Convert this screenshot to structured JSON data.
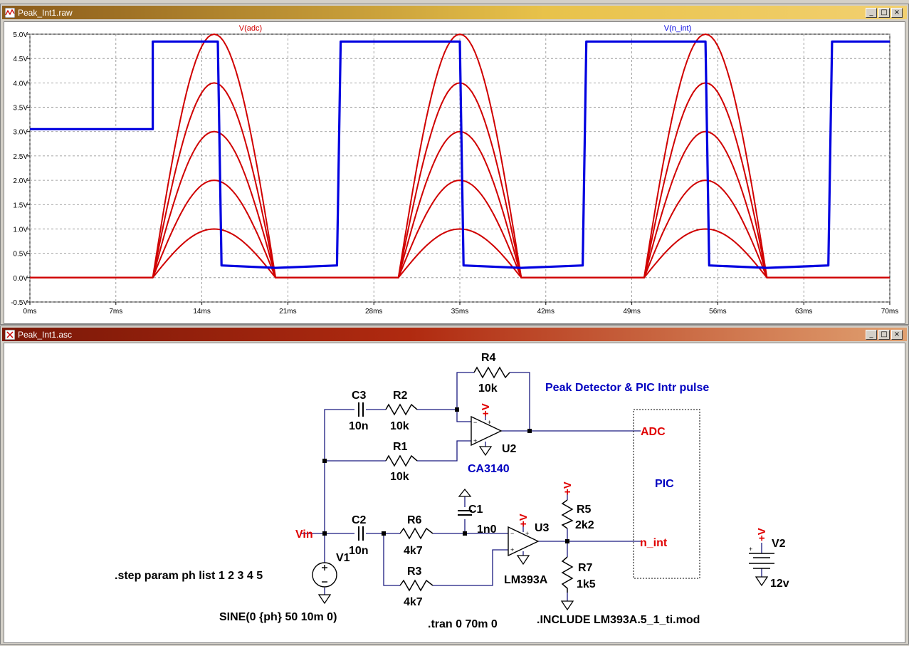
{
  "plot_window": {
    "title": "Peak_Int1.raw",
    "controls": {
      "minimize": "_",
      "maximize": "□",
      "close": "×"
    },
    "trace_labels": [
      {
        "name": "V(adc)",
        "color": "#d00000"
      },
      {
        "name": "V(n_int)",
        "color": "#0000e0"
      }
    ],
    "y_ticks": [
      "5.0V",
      "4.5V",
      "4.0V",
      "3.5V",
      "3.0V",
      "2.5V",
      "2.0V",
      "1.5V",
      "1.0V",
      "0.5V",
      "0.0V",
      "-0.5V"
    ],
    "x_ticks": [
      "0ms",
      "7ms",
      "14ms",
      "21ms",
      "28ms",
      "35ms",
      "42ms",
      "49ms",
      "56ms",
      "63ms",
      "70ms"
    ]
  },
  "chart_data": {
    "type": "line",
    "x_unit": "ms",
    "y_unit": "V",
    "xlim": [
      0,
      70
    ],
    "ylim": [
      -0.5,
      5.0
    ],
    "grid": true,
    "series": [
      {
        "name": "V(adc)",
        "color": "#d00000",
        "description_steps": [
          1,
          2,
          3,
          4,
          5
        ],
        "peaks": [
          {
            "x": 15,
            "y": [
              1.0,
              2.0,
              3.0,
              4.0,
              5.0
            ]
          },
          {
            "x": 35,
            "y": [
              1.0,
              2.0,
              3.0,
              4.0,
              5.0
            ]
          },
          {
            "x": 55,
            "y": [
              1.0,
              2.0,
              3.0,
              4.0,
              5.0
            ]
          }
        ],
        "pulses_ms": [
          [
            10,
            20
          ],
          [
            30,
            40
          ],
          [
            50,
            60
          ]
        ]
      },
      {
        "name": "V(n_int)",
        "color": "#0000e0",
        "points": [
          [
            0,
            3.05
          ],
          [
            10,
            3.05
          ],
          [
            10,
            4.85
          ],
          [
            15.3,
            4.85
          ],
          [
            15.6,
            0.25
          ],
          [
            20,
            0.2
          ],
          [
            25,
            0.25
          ],
          [
            25.3,
            4.85
          ],
          [
            35,
            4.85
          ],
          [
            35.3,
            0.25
          ],
          [
            40,
            0.2
          ],
          [
            45,
            0.25
          ],
          [
            45.3,
            4.85
          ],
          [
            55,
            4.85
          ],
          [
            55.3,
            0.25
          ],
          [
            60,
            0.2
          ],
          [
            65,
            0.25
          ],
          [
            65.3,
            4.85
          ],
          [
            70,
            4.85
          ]
        ]
      }
    ]
  },
  "schematic_window": {
    "title": "Peak_Int1.asc",
    "controls": {
      "minimize": "_",
      "maximize": "□",
      "close": "×"
    },
    "labels": {
      "title_text": "Peak Detector  & PIC Intr pulse",
      "pic": "PIC",
      "adc": "ADC",
      "n_int": "n_int",
      "vin": "Vin",
      "step": ".step param ph list 1 2 3 4 5",
      "sine": "SINE(0 {ph} 50 10m 0)",
      "tran": ".tran 0 70m 0",
      "include": ".INCLUDE LM393A.5_1_ti.mod",
      "plus_v": "+V"
    },
    "components": [
      {
        "ref": "R4",
        "value": "10k"
      },
      {
        "ref": "C3",
        "value": "10n"
      },
      {
        "ref": "R2",
        "value": "10k"
      },
      {
        "ref": "R1",
        "value": "10k"
      },
      {
        "ref": "U2",
        "value": "CA3140"
      },
      {
        "ref": "C2",
        "value": "10n"
      },
      {
        "ref": "R6",
        "value": "4k7"
      },
      {
        "ref": "C1",
        "value": "1n0"
      },
      {
        "ref": "U3",
        "value": "LM393A"
      },
      {
        "ref": "R5",
        "value": "2k2"
      },
      {
        "ref": "R7",
        "value": "1k5"
      },
      {
        "ref": "R3",
        "value": "4k7"
      },
      {
        "ref": "V1",
        "value": ""
      },
      {
        "ref": "V2",
        "value": "12v"
      }
    ]
  }
}
